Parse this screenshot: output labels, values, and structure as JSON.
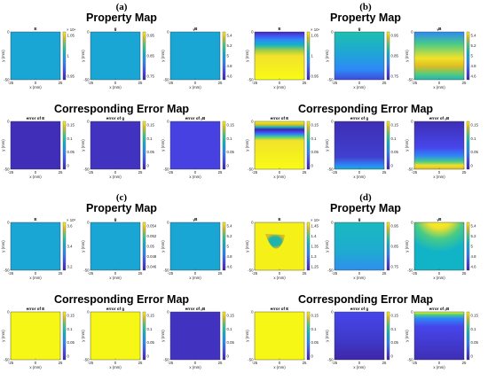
{
  "colors": {
    "viridis_like": [
      "#3e26a8",
      "#4746eb",
      "#2e87f7",
      "#11b3c7",
      "#48cb86",
      "#dcbd23",
      "#f9fb15"
    ]
  },
  "x_axis": {
    "label": "x (mm)",
    "ticks": [
      "-25",
      "0",
      "25"
    ]
  },
  "y_axis": {
    "label": "y (mm)",
    "ticks": [
      "0",
      "-50"
    ]
  },
  "panels": [
    {
      "label": "(a)",
      "property_title": "Property Map",
      "error_title": "Corresponding Error Map",
      "property_plots": [
        {
          "title": "E",
          "exponent": "× 10⁴",
          "ticks": [
            "1.05",
            "1",
            "0.95"
          ],
          "pattern": "uniform",
          "level": 0.45
        },
        {
          "title": "g",
          "ticks": [
            "0.95",
            "0.85",
            "0.75"
          ],
          "pattern": "uniform",
          "level": 0.45
        },
        {
          "title": "ᵧB",
          "ticks": [
            "5.4",
            "5.2",
            "5",
            "4.8",
            "4.6"
          ],
          "pattern": "uniform",
          "level": 0.45
        }
      ],
      "error_plots": [
        {
          "title": "error of E",
          "ticks": [
            "0.15",
            "0.1",
            "0.05",
            "0"
          ],
          "pattern": "uniform",
          "level": 0.04
        },
        {
          "title": "error of g",
          "ticks": [
            "0.15",
            "0.1",
            "0.05",
            "0"
          ],
          "pattern": "uniform",
          "level": 0.06
        },
        {
          "title": "error of ᵧB",
          "ticks": [
            "0.15",
            "0.1",
            "0.05",
            "0"
          ],
          "pattern": "uniform",
          "level": 0.14
        }
      ]
    },
    {
      "label": "(b)",
      "property_title": "Property Map",
      "error_title": "Corresponding Error Map",
      "property_plots": [
        {
          "title": "E",
          "exponent": "× 10⁴",
          "ticks": [
            "1.05",
            "1",
            "0.95"
          ],
          "pattern": "top-dark",
          "level": 0.9
        },
        {
          "title": "g",
          "ticks": [
            "0.95",
            "0.85",
            "0.75"
          ],
          "pattern": "vertical-fade",
          "level": 0.45
        },
        {
          "title": "ᵧB",
          "ticks": [
            "5.4",
            "5.2",
            "5",
            "4.8",
            "4.6"
          ],
          "pattern": "mid-band",
          "level": 0.45
        }
      ],
      "error_plots": [
        {
          "title": "error of E",
          "ticks": [
            "0.15",
            "0.1",
            "0.05",
            "0"
          ],
          "pattern": "error-band",
          "level": 1
        },
        {
          "title": "error of g",
          "ticks": [
            "0.15",
            "0.1",
            "0.05",
            "0"
          ],
          "pattern": "bottom-glow",
          "level": 0.08
        },
        {
          "title": "error of ᵧB",
          "ticks": [
            "0.15",
            "0.1",
            "0.05",
            "0"
          ],
          "pattern": "lower-band",
          "level": 0.12
        }
      ]
    },
    {
      "label": "(c)",
      "property_title": "Property Map",
      "error_title": "Corresponding Error Map",
      "property_plots": [
        {
          "title": "E",
          "exponent": "× 10³",
          "ticks": [
            "3.6",
            "3.4",
            "3.2"
          ],
          "pattern": "uniform",
          "level": 0.45
        },
        {
          "title": "g",
          "ticks": [
            "0.054",
            "0.052",
            "0.05",
            "0.048",
            "0.046"
          ],
          "pattern": "uniform",
          "level": 0.45
        },
        {
          "title": "ᵧB",
          "ticks": [
            "5.4",
            "5.2",
            "5",
            "4.8",
            "4.6"
          ],
          "pattern": "uniform",
          "level": 0.45
        }
      ],
      "error_plots": [
        {
          "title": "error of E",
          "ticks": [
            "0.15",
            "0.1",
            "0.05",
            "0"
          ],
          "pattern": "uniform",
          "level": 0.99
        },
        {
          "title": "error of g",
          "ticks": [
            "0.15",
            "0.1",
            "0.05",
            "0"
          ],
          "pattern": "uniform",
          "level": 0.99
        },
        {
          "title": "error of ᵧB",
          "ticks": [
            "0.15",
            "0.1",
            "0.05",
            "0"
          ],
          "pattern": "uniform",
          "level": 0.06
        }
      ]
    },
    {
      "label": "(d)",
      "property_title": "Property Map",
      "error_title": "Corresponding Error Map",
      "property_plots": [
        {
          "title": "E",
          "exponent": "× 10⁴",
          "ticks": [
            "1.45",
            "1.4",
            "1.35",
            "1.3",
            "1.25"
          ],
          "pattern": "spot",
          "level": 0.97
        },
        {
          "title": "g",
          "ticks": [
            "0.95",
            "0.85",
            "0.75"
          ],
          "pattern": "vertical-fade-light",
          "level": 0.45
        },
        {
          "title": "ᵧB",
          "ticks": [
            "5.4",
            "5.2",
            "5",
            "4.8",
            "4.6"
          ],
          "pattern": "top-arc",
          "level": 0.45
        }
      ],
      "error_plots": [
        {
          "title": "error of E",
          "ticks": [
            "0.15",
            "0.1",
            "0.05",
            "0"
          ],
          "pattern": "uniform",
          "level": 0.99
        },
        {
          "title": "error of g",
          "ticks": [
            "0.15",
            "0.1",
            "0.05",
            "0"
          ],
          "pattern": "vertical-blue",
          "level": 0.1
        },
        {
          "title": "error of ᵧB",
          "ticks": [
            "0.15",
            "0.1",
            "0.05",
            "0"
          ],
          "pattern": "top-glow",
          "level": 0.1
        }
      ]
    }
  ]
}
